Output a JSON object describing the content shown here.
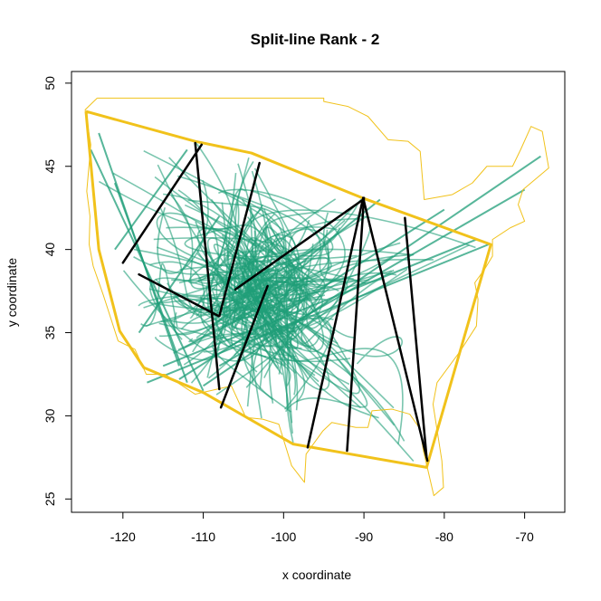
{
  "chart_data": {
    "type": "line",
    "title": "Split-line Rank - 2",
    "xlabel": "x coordinate",
    "ylabel": "y coordinate",
    "xlim": [
      -126.4,
      -65
    ],
    "ylim": [
      24.2,
      50.7
    ],
    "xticks": [
      -120,
      -110,
      -100,
      -90,
      -80,
      -70
    ],
    "yticks": [
      25,
      30,
      35,
      40,
      45,
      50
    ],
    "grid": false,
    "colors": {
      "trajectories": "#1f9e78",
      "outline": "#f1c21b",
      "hull": "#f1c21b",
      "split_lines": "#000000"
    },
    "series": [
      {
        "type": "outline",
        "values": [
          [
            -123.2,
            49.1
          ],
          [
            -95.0,
            49.1
          ],
          [
            -95.0,
            48.9
          ],
          [
            -92.0,
            48.6
          ],
          [
            -89.5,
            48.0
          ],
          [
            -87.0,
            46.6
          ],
          [
            -84.5,
            46.5
          ],
          [
            -83.0,
            45.9
          ],
          [
            -82.5,
            43.0
          ],
          [
            -79.0,
            43.3
          ],
          [
            -76.5,
            44.0
          ],
          [
            -74.7,
            45.0
          ],
          [
            -71.5,
            45.0
          ],
          [
            -70.5,
            46.0
          ],
          [
            -69.2,
            47.4
          ],
          [
            -67.8,
            47.1
          ],
          [
            -67.0,
            44.9
          ],
          [
            -70.2,
            43.6
          ],
          [
            -70.8,
            42.7
          ],
          [
            -70.0,
            41.7
          ],
          [
            -71.8,
            41.3
          ],
          [
            -74.0,
            40.6
          ],
          [
            -74.0,
            39.6
          ],
          [
            -75.0,
            38.8
          ],
          [
            -76.2,
            38.0
          ],
          [
            -75.8,
            37.0
          ],
          [
            -76.0,
            35.4
          ],
          [
            -78.0,
            33.9
          ],
          [
            -80.9,
            32.0
          ],
          [
            -81.4,
            30.7
          ],
          [
            -80.3,
            27.3
          ],
          [
            -80.1,
            25.7
          ],
          [
            -81.3,
            25.2
          ],
          [
            -82.6,
            27.9
          ],
          [
            -83.0,
            29.2
          ],
          [
            -84.3,
            30.1
          ],
          [
            -86.5,
            30.4
          ],
          [
            -89.0,
            30.3
          ],
          [
            -89.5,
            29.3
          ],
          [
            -91.0,
            29.3
          ],
          [
            -94.0,
            29.6
          ],
          [
            -95.1,
            29.1
          ],
          [
            -97.2,
            27.7
          ],
          [
            -97.4,
            26.0
          ],
          [
            -99.0,
            27.0
          ],
          [
            -100.6,
            29.5
          ],
          [
            -102.6,
            29.8
          ],
          [
            -104.7,
            29.9
          ],
          [
            -106.5,
            31.8
          ],
          [
            -111.0,
            31.3
          ],
          [
            -114.8,
            32.5
          ],
          [
            -117.1,
            32.5
          ],
          [
            -118.5,
            34.0
          ],
          [
            -120.6,
            34.5
          ],
          [
            -122.4,
            37.2
          ],
          [
            -123.7,
            39.0
          ],
          [
            -124.2,
            40.3
          ],
          [
            -124.1,
            42.0
          ],
          [
            -124.5,
            43.5
          ],
          [
            -124.0,
            46.3
          ],
          [
            -124.7,
            48.4
          ],
          [
            -123.2,
            49.1
          ]
        ]
      },
      {
        "type": "hull",
        "values": [
          [
            -124.6,
            48.3
          ],
          [
            -111.0,
            46.5
          ],
          [
            -104.0,
            45.8
          ],
          [
            -90.2,
            43.1
          ],
          [
            -74.2,
            40.3
          ],
          [
            -82.2,
            26.9
          ],
          [
            -98.8,
            28.3
          ],
          [
            -110.0,
            31.4
          ],
          [
            -117.4,
            32.9
          ],
          [
            -120.4,
            35.1
          ],
          [
            -123.0,
            40.0
          ],
          [
            -124.6,
            48.3
          ]
        ]
      },
      {
        "type": "split_lines",
        "values": [
          [
            [
              -111.0,
              46.4
            ],
            [
              -108.0,
              31.6
            ]
          ],
          [
            [
              -120.0,
              39.2
            ],
            [
              -110.2,
              46.3
            ]
          ],
          [
            [
              -118.0,
              38.5
            ],
            [
              -108.1,
              36.0
            ]
          ],
          [
            [
              -108.0,
              36.0
            ],
            [
              -103.0,
              45.2
            ]
          ],
          [
            [
              -107.8,
              30.5
            ],
            [
              -102.0,
              37.8
            ]
          ],
          [
            [
              -106.0,
              37.6
            ],
            [
              -90.1,
              43.0
            ]
          ],
          [
            [
              -97.0,
              28.1
            ],
            [
              -90.1,
              43.1
            ]
          ],
          [
            [
              -90.0,
              43.1
            ],
            [
              -92.1,
              27.9
            ]
          ],
          [
            [
              -90.1,
              43.1
            ],
            [
              -82.1,
              27.3
            ]
          ],
          [
            [
              -84.9,
              41.9
            ],
            [
              -82.2,
              27.5
            ]
          ]
        ]
      }
    ]
  }
}
